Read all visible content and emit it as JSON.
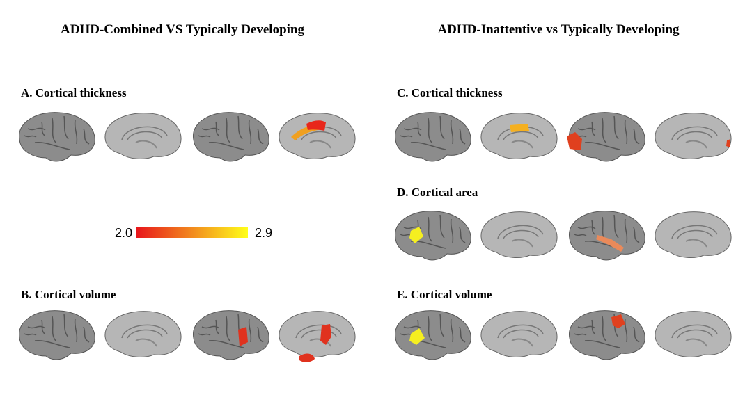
{
  "titles": [
    "ADHD-Combined VS Typically Developing",
    "ADHD-Inattentive vs Typically Developing"
  ],
  "panels": [
    {
      "label": "A.  Cortical thickness"
    },
    {
      "label": "B.  Cortical volume"
    },
    {
      "label": "C.  Cortical thickness"
    },
    {
      "label": "D.  Cortical area"
    },
    {
      "label": "E.  Cortical volume"
    }
  ],
  "colorbar": {
    "min_label": "2.0",
    "max_label": "2.9"
  }
}
